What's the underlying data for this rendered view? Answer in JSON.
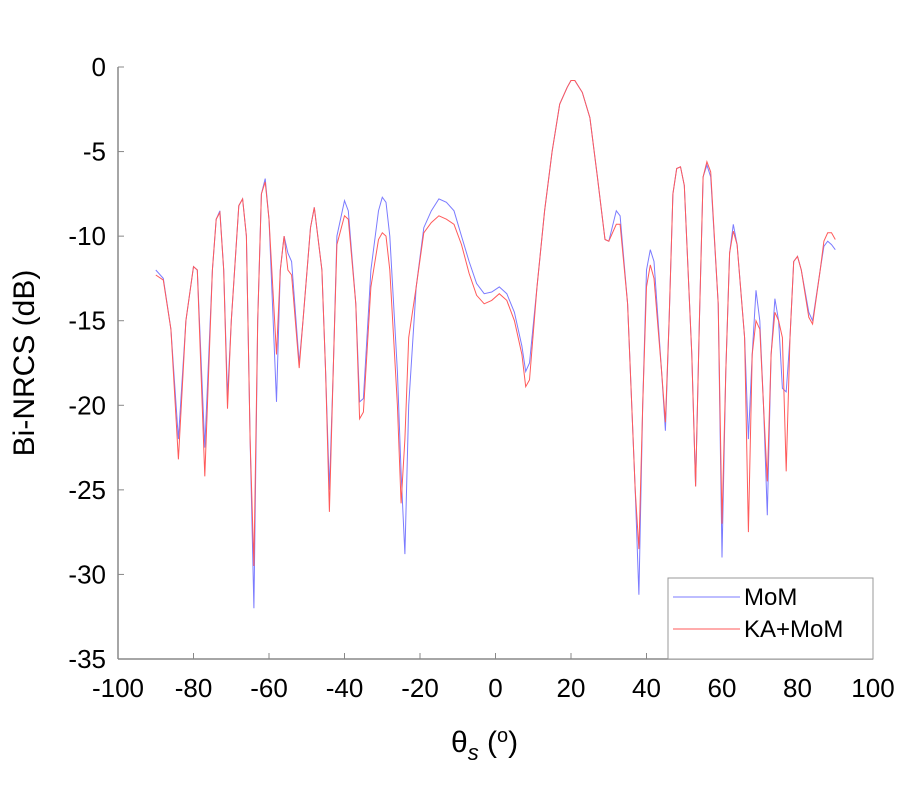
{
  "chart_data": {
    "type": "line",
    "title": "",
    "xlabel_symbol": "θ",
    "xlabel_sub": "s",
    "xlabel_unit_open": "(",
    "xlabel_unit": "o",
    "xlabel_unit_close": ")",
    "ylabel": "Bi-NRCS (dB)",
    "xlim": [
      -100,
      100
    ],
    "ylim": [
      -35,
      0
    ],
    "xticks": [
      -100,
      -80,
      -60,
      -40,
      -20,
      0,
      20,
      40,
      60,
      80,
      100
    ],
    "yticks": [
      0,
      -5,
      -10,
      -15,
      -20,
      -25,
      -30,
      -35
    ],
    "xtick_labels": [
      "-100",
      "-80",
      "-60",
      "-40",
      "-20",
      "0",
      "20",
      "40",
      "60",
      "80",
      "100"
    ],
    "ytick_labels": [
      "0",
      "-5",
      "-10",
      "-15",
      "-20",
      "-25",
      "-30",
      "-35"
    ],
    "grid": false,
    "legend_position": "bottom-right",
    "x": [
      -90,
      -88,
      -86,
      -84,
      -82,
      -80,
      -79,
      -77,
      -75,
      -74,
      -73,
      -72,
      -71,
      -70,
      -68,
      -67,
      -66,
      -65,
      -64,
      -63,
      -62,
      -61,
      -60,
      -58,
      -57,
      -56,
      -55,
      -54,
      -52,
      -51,
      -49,
      -48,
      -46,
      -45,
      -44,
      -43,
      -42,
      -40,
      -39,
      -37,
      -36,
      -35,
      -33,
      -31,
      -30,
      -29,
      -28,
      -26,
      -25,
      -24,
      -23,
      -21,
      -19,
      -17,
      -15,
      -13,
      -11,
      -9,
      -7,
      -5,
      -3,
      -1,
      1,
      3,
      5,
      7,
      8,
      9,
      11,
      13,
      15,
      17,
      19,
      20,
      21,
      23,
      25,
      27,
      29,
      30,
      32,
      33,
      35,
      37,
      38,
      39,
      40,
      41,
      42,
      44,
      45,
      46,
      47,
      48,
      49,
      50,
      52,
      53,
      54,
      55,
      56,
      57,
      59,
      60,
      61,
      62,
      63,
      64,
      66,
      67,
      68,
      69,
      70,
      71,
      72,
      73,
      74,
      75,
      76,
      77,
      78,
      79,
      80,
      81,
      83,
      84,
      86,
      87,
      88,
      89,
      90
    ],
    "series": [
      {
        "name": "MoM",
        "color": "#7b7bff",
        "values": [
          -12,
          -12.5,
          -15.5,
          -22,
          -15,
          -11.8,
          -12,
          -22.5,
          -12,
          -9,
          -8.5,
          -12,
          -19.5,
          -15,
          -8.2,
          -7.8,
          -10,
          -22,
          -32,
          -15,
          -7.5,
          -6.6,
          -9,
          -19.8,
          -12,
          -10,
          -11,
          -11.5,
          -17.5,
          -15,
          -9.5,
          -8.3,
          -12,
          -18,
          -25,
          -18,
          -10,
          -7.9,
          -8.5,
          -14,
          -19.8,
          -19.6,
          -12,
          -8.5,
          -7.7,
          -8,
          -10,
          -18,
          -24,
          -28.8,
          -20,
          -13,
          -9.5,
          -8.5,
          -7.8,
          -8,
          -8.5,
          -10,
          -11.5,
          -12.8,
          -13.4,
          -13.3,
          -13,
          -13.4,
          -14.5,
          -16.5,
          -18,
          -17.5,
          -13,
          -8.5,
          -5,
          -2.2,
          -1.2,
          -0.8,
          -0.8,
          -1.5,
          -3,
          -6.5,
          -10.2,
          -10.3,
          -8.5,
          -8.8,
          -14,
          -25,
          -31.2,
          -20,
          -12,
          -10.8,
          -11.5,
          -18,
          -21.5,
          -15,
          -7.5,
          -6,
          -5.9,
          -7,
          -17,
          -24.8,
          -15,
          -6.5,
          -5.8,
          -6.5,
          -14,
          -29,
          -18,
          -11,
          -9.3,
          -10.5,
          -16,
          -22,
          -17,
          -13.2,
          -15,
          -20,
          -26.5,
          -17,
          -13.7,
          -15,
          -19,
          -19.2,
          -16,
          -11.5,
          -11.2,
          -12,
          -14.5,
          -15,
          -12,
          -10.6,
          -10.3,
          -10.5,
          -10.8
        ]
      },
      {
        "name": "KA+MoM",
        "color": "#ff5a5a",
        "values": [
          -12.3,
          -12.6,
          -15.5,
          -23.2,
          -15,
          -11.8,
          -12,
          -24.2,
          -12,
          -9,
          -8.6,
          -12,
          -20.2,
          -15,
          -8.2,
          -7.8,
          -10,
          -22,
          -29.5,
          -15,
          -7.5,
          -6.8,
          -9,
          -17,
          -12,
          -10,
          -12,
          -12.3,
          -17.8,
          -15,
          -9.5,
          -8.3,
          -12,
          -18,
          -26.3,
          -18,
          -10.5,
          -8.8,
          -9,
          -14,
          -20.8,
          -20.4,
          -13,
          -10.2,
          -9.8,
          -10,
          -12,
          -20,
          -25.8,
          -22,
          -16,
          -13,
          -9.8,
          -9.2,
          -8.8,
          -9,
          -9.3,
          -10.5,
          -12.2,
          -13.5,
          -14,
          -13.8,
          -13.4,
          -13.8,
          -15,
          -17,
          -18.9,
          -18.5,
          -13,
          -8.5,
          -5,
          -2.2,
          -1.2,
          -0.8,
          -0.8,
          -1.5,
          -3,
          -6.5,
          -10.2,
          -10.3,
          -9.3,
          -9.3,
          -14,
          -25,
          -28.5,
          -20,
          -13,
          -11.7,
          -12.5,
          -18,
          -21,
          -15,
          -7.5,
          -6,
          -5.9,
          -7,
          -17,
          -24.8,
          -15,
          -6.5,
          -5.6,
          -6.2,
          -14,
          -27,
          -18,
          -11,
          -9.7,
          -10.5,
          -16,
          -27.5,
          -17,
          -15,
          -15.5,
          -20,
          -24.5,
          -17,
          -14.5,
          -15,
          -16,
          -23.9,
          -16,
          -11.5,
          -11.2,
          -12,
          -14.8,
          -15.2,
          -12,
          -10.3,
          -9.8,
          -9.8,
          -10.2
        ]
      }
    ]
  }
}
